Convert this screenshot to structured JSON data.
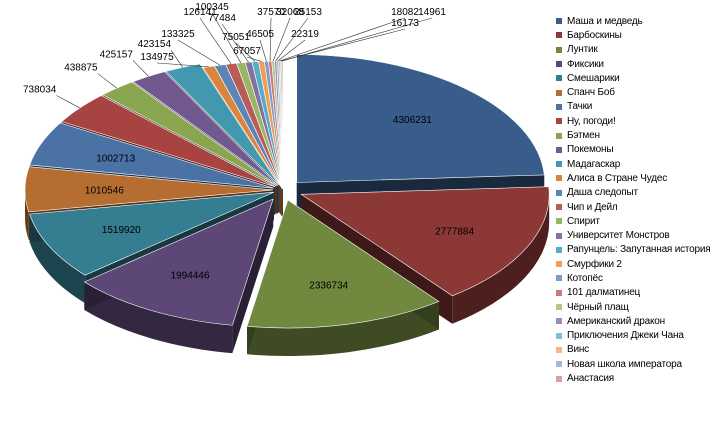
{
  "chart_data": {
    "type": "pie",
    "title": "",
    "legend_position": "right",
    "slices": [
      {
        "name": "Маша и медведь",
        "value": 4306231,
        "color": "#385d8a"
      },
      {
        "name": "Барбоскины",
        "value": 2777884,
        "color": "#8c3836"
      },
      {
        "name": "Лунтик",
        "value": 2336734,
        "color": "#71893f"
      },
      {
        "name": "Фиксики",
        "value": 1994446,
        "color": "#5c4776"
      },
      {
        "name": "Смешарики",
        "value": 1519920,
        "color": "#357d91"
      },
      {
        "name": "Спанч Боб",
        "value": 1010546,
        "color": "#b66d31"
      },
      {
        "name": "Тачки",
        "value": 1002713,
        "color": "#4a72a4"
      },
      {
        "name": "Ну, погоди!",
        "value": 738034,
        "color": "#a74442"
      },
      {
        "name": "Бэтмен",
        "value": 438875,
        "color": "#89a54e"
      },
      {
        "name": "Покемоны",
        "value": 425157,
        "color": "#71588f"
      },
      {
        "name": "Мадагаскар",
        "value": 423154,
        "color": "#4198af"
      },
      {
        "name": "Алиса в Стране Чудес",
        "value": 134975,
        "color": "#db843d"
      },
      {
        "name": "Даша следопыт",
        "value": 133325,
        "color": "#5b85b8"
      },
      {
        "name": "Чип и Дейл",
        "value": 126141,
        "color": "#b95b58"
      },
      {
        "name": "Спирит",
        "value": 100345,
        "color": "#9ab664"
      },
      {
        "name": "Университет Монстров",
        "value": 77484,
        "color": "#8470a3"
      },
      {
        "name": "Рапунцель: Запутанная история",
        "value": 75051,
        "color": "#55aec7"
      },
      {
        "name": "Смурфики 2",
        "value": 67057,
        "color": "#f29d56"
      },
      {
        "name": "Котопёс",
        "value": 46505,
        "color": "#7d9cc7"
      },
      {
        "name": "101 далматинец",
        "value": 37570,
        "color": "#c97977"
      },
      {
        "name": "Чёрный плащ",
        "value": 32068,
        "color": "#b0c888"
      },
      {
        "name": "Американский дракон",
        "value": 25153,
        "color": "#9c8cb8"
      },
      {
        "name": "Приключения Джеки Чана",
        "value": 22319,
        "color": "#7dc0d5"
      },
      {
        "name": "Винс",
        "value": 18082,
        "color": "#f6b783"
      },
      {
        "name": "Новая школа императора",
        "value": 16173,
        "color": "#a3b8d9"
      },
      {
        "name": "Анастасия",
        "value": 14961,
        "color": "#d9a09f"
      }
    ]
  }
}
